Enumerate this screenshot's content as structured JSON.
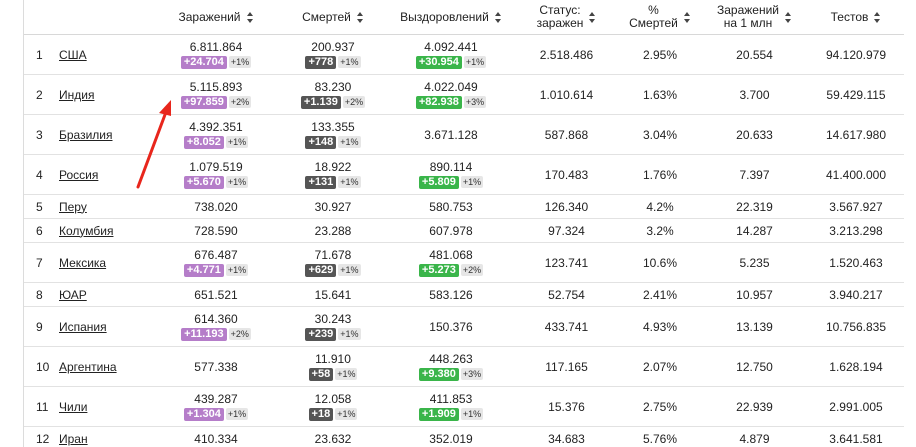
{
  "headers": {
    "cases": "Заражений",
    "deaths": "Смертей",
    "recovered": "Выздоровлений",
    "active_l1": "Статус:",
    "active_l2": "заражен",
    "pct_l1": "%",
    "pct_l2": "Смертей",
    "permil_l1": "Заражений",
    "permil_l2": "на 1 млн",
    "tests": "Тестов"
  },
  "rows": [
    {
      "idx": "1",
      "country": "США",
      "cases": "6.811.864",
      "cases_new": "+24.704",
      "cases_pct": "+1%",
      "deaths": "200.937",
      "deaths_new": "+778",
      "deaths_pct": "+1%",
      "rec": "4.092.441",
      "rec_new": "+30.954",
      "rec_pct": "+1%",
      "active": "2.518.486",
      "pct": "2.95%",
      "permil": "20.554",
      "tests": "94.120.979"
    },
    {
      "idx": "2",
      "country": "Индия",
      "cases": "5.115.893",
      "cases_new": "+97.859",
      "cases_pct": "+2%",
      "deaths": "83.230",
      "deaths_new": "+1.139",
      "deaths_pct": "+2%",
      "rec": "4.022.049",
      "rec_new": "+82.938",
      "rec_pct": "+3%",
      "active": "1.010.614",
      "pct": "1.63%",
      "permil": "3.700",
      "tests": "59.429.115"
    },
    {
      "idx": "3",
      "country": "Бразилия",
      "cases": "4.392.351",
      "cases_new": "+8.052",
      "cases_pct": "+1%",
      "deaths": "133.355",
      "deaths_new": "+148",
      "deaths_pct": "+1%",
      "rec": "3.671.128",
      "active": "587.868",
      "pct": "3.04%",
      "permil": "20.633",
      "tests": "14.617.980"
    },
    {
      "idx": "4",
      "country": "Россия",
      "cases": "1.079.519",
      "cases_new": "+5.670",
      "cases_pct": "+1%",
      "deaths": "18.922",
      "deaths_new": "+131",
      "deaths_pct": "+1%",
      "rec": "890.114",
      "rec_new": "+5.809",
      "rec_pct": "+1%",
      "active": "170.483",
      "pct": "1.76%",
      "permil": "7.397",
      "tests": "41.400.000"
    },
    {
      "idx": "5",
      "country": "Перу",
      "cases": "738.020",
      "deaths": "30.927",
      "rec": "580.753",
      "active": "126.340",
      "pct": "4.2%",
      "permil": "22.319",
      "tests": "3.567.927"
    },
    {
      "idx": "6",
      "country": "Колумбия",
      "cases": "728.590",
      "deaths": "23.288",
      "rec": "607.978",
      "active": "97.324",
      "pct": "3.2%",
      "permil": "14.287",
      "tests": "3.213.298"
    },
    {
      "idx": "7",
      "country": "Мексика",
      "cases": "676.487",
      "cases_new": "+4.771",
      "cases_pct": "+1%",
      "deaths": "71.678",
      "deaths_new": "+629",
      "deaths_pct": "+1%",
      "rec": "481.068",
      "rec_new": "+5.273",
      "rec_pct": "+2%",
      "active": "123.741",
      "pct": "10.6%",
      "permil": "5.235",
      "tests": "1.520.463"
    },
    {
      "idx": "8",
      "country": "ЮАР",
      "cases": "651.521",
      "deaths": "15.641",
      "rec": "583.126",
      "active": "52.754",
      "pct": "2.41%",
      "permil": "10.957",
      "tests": "3.940.217"
    },
    {
      "idx": "9",
      "country": "Испания",
      "cases": "614.360",
      "cases_new": "+11.193",
      "cases_pct": "+2%",
      "deaths": "30.243",
      "deaths_new": "+239",
      "deaths_pct": "+1%",
      "rec": "150.376",
      "active": "433.741",
      "pct": "4.93%",
      "permil": "13.139",
      "tests": "10.756.835"
    },
    {
      "idx": "10",
      "country": "Аргентина",
      "cases": "577.338",
      "deaths": "11.910",
      "deaths_new": "+58",
      "deaths_pct": "+1%",
      "rec": "448.263",
      "rec_new": "+9.380",
      "rec_pct": "+3%",
      "active": "117.165",
      "pct": "2.07%",
      "permil": "12.750",
      "tests": "1.628.194"
    },
    {
      "idx": "11",
      "country": "Чили",
      "cases": "439.287",
      "cases_new": "+1.304",
      "cases_pct": "+1%",
      "deaths": "12.058",
      "deaths_new": "+18",
      "deaths_pct": "+1%",
      "rec": "411.853",
      "rec_new": "+1.909",
      "rec_pct": "+1%",
      "active": "15.376",
      "pct": "2.75%",
      "permil": "22.939",
      "tests": "2.991.005"
    },
    {
      "idx": "12",
      "country": "Иран",
      "cases": "410.334",
      "deaths": "23.632",
      "rec": "352.019",
      "active": "34.683",
      "pct": "5.76%",
      "permil": "4.879",
      "tests": "3.641.581"
    }
  ],
  "colors": {
    "cases_badge": "#b57dc9",
    "deaths_badge": "#555555",
    "recovered_badge": "#3ab54a",
    "arrow": "#e8261c"
  }
}
